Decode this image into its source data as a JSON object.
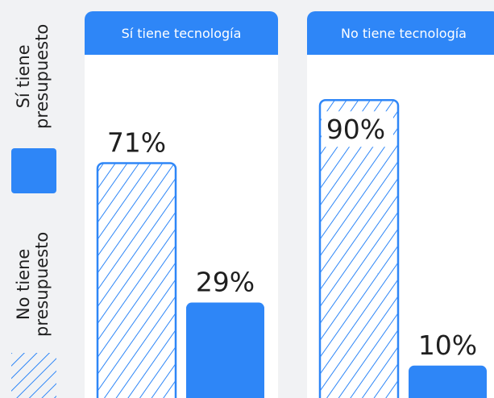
{
  "legend": {
    "items": [
      {
        "label": "Sí tiene\npresupuesto",
        "pattern": "solid"
      },
      {
        "label": "No tiene\npresupuesto",
        "pattern": "hatched"
      }
    ]
  },
  "colors": {
    "accent": "#2e86f7",
    "panel_bg": "#ffffff",
    "page_bg": "#f1f2f4",
    "label_text": "#1f1f1f"
  },
  "chart_data": [
    {
      "type": "bar",
      "title": "Sí tiene tecnología",
      "categories": [
        "No tiene presupuesto",
        "Sí tiene presupuesto"
      ],
      "values": [
        71,
        29
      ],
      "value_labels": [
        "71%",
        "29%"
      ],
      "unit": "%",
      "ylim": [
        0,
        100
      ],
      "grid": false
    },
    {
      "type": "bar",
      "title": "No tiene tecnología",
      "categories": [
        "No tiene presupuesto",
        "Sí tiene presupuesto"
      ],
      "values": [
        90,
        10
      ],
      "value_labels": [
        "90%",
        "10%"
      ],
      "unit": "%",
      "ylim": [
        0,
        100
      ],
      "grid": false
    }
  ]
}
